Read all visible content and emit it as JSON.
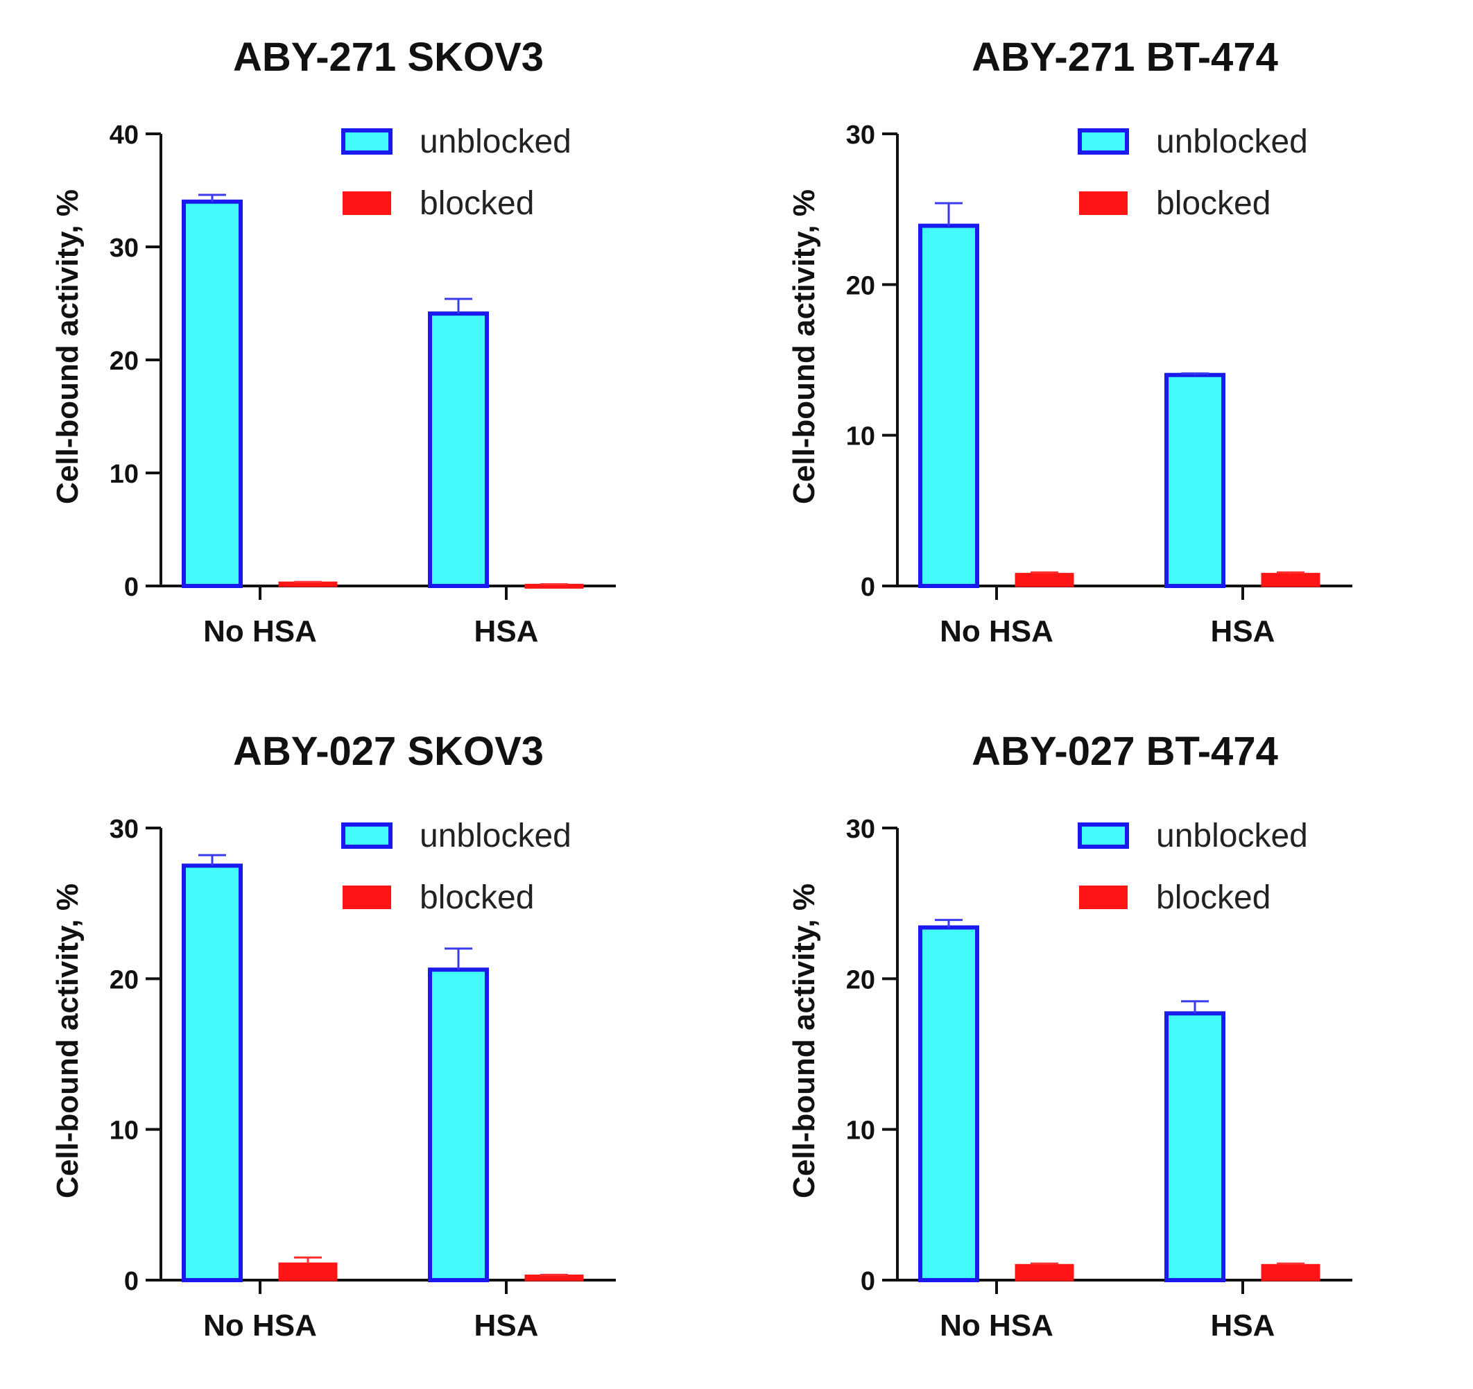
{
  "chart_data": [
    {
      "type": "bar",
      "title": "ABY-271 SKOV3",
      "ylabel": "Cell-bound activity, %",
      "xlabel": "",
      "ylim": [
        0,
        40
      ],
      "yticks": [
        0,
        10,
        20,
        30,
        40
      ],
      "categories": [
        "No HSA",
        "HSA"
      ],
      "legend": [
        "unblocked",
        "blocked"
      ],
      "legend_position": "top-right",
      "series": [
        {
          "name": "unblocked",
          "values": [
            34.0,
            24.1
          ],
          "errors": [
            0.6,
            1.3
          ]
        },
        {
          "name": "blocked",
          "values": [
            0.3,
            0.1
          ],
          "errors": [
            0.05,
            0.05
          ]
        }
      ]
    },
    {
      "type": "bar",
      "title": "ABY-271 BT-474",
      "ylabel": "Cell-bound activity, %",
      "xlabel": "",
      "ylim": [
        0,
        30
      ],
      "yticks": [
        0,
        10,
        20,
        30
      ],
      "categories": [
        "No HSA",
        "HSA"
      ],
      "legend": [
        "unblocked",
        "blocked"
      ],
      "legend_position": "top-right",
      "series": [
        {
          "name": "unblocked",
          "values": [
            23.9,
            14.0
          ],
          "errors": [
            1.5,
            0.1
          ]
        },
        {
          "name": "blocked",
          "values": [
            0.8,
            0.8
          ],
          "errors": [
            0.1,
            0.1
          ]
        }
      ]
    },
    {
      "type": "bar",
      "title": "ABY-027 SKOV3",
      "ylabel": "Cell-bound activity, %",
      "xlabel": "",
      "ylim": [
        0,
        30
      ],
      "yticks": [
        0,
        10,
        20,
        30
      ],
      "categories": [
        "No HSA",
        "HSA"
      ],
      "legend": [
        "unblocked",
        "blocked"
      ],
      "legend_position": "top-right",
      "series": [
        {
          "name": "unblocked",
          "values": [
            27.5,
            20.6
          ],
          "errors": [
            0.7,
            1.4
          ]
        },
        {
          "name": "blocked",
          "values": [
            1.1,
            0.3
          ],
          "errors": [
            0.4,
            0.05
          ]
        }
      ]
    },
    {
      "type": "bar",
      "title": "ABY-027 BT-474",
      "ylabel": "Cell-bound activity, %",
      "xlabel": "",
      "ylim": [
        0,
        30
      ],
      "yticks": [
        0,
        10,
        20,
        30
      ],
      "categories": [
        "No HSA",
        "HSA"
      ],
      "legend": [
        "unblocked",
        "blocked"
      ],
      "legend_position": "top-right",
      "series": [
        {
          "name": "unblocked",
          "values": [
            23.4,
            17.7
          ],
          "errors": [
            0.5,
            0.8
          ]
        },
        {
          "name": "blocked",
          "values": [
            1.0,
            1.0
          ],
          "errors": [
            0.1,
            0.1
          ]
        }
      ]
    }
  ],
  "colors": {
    "unblocked_fill": "#44fbfb",
    "unblocked_stroke": "#1a1aee",
    "blocked_fill": "#ff1515",
    "blocked_stroke": "#ff1515",
    "error_unblocked": "#3a3aee",
    "error_blocked": "#ff3030",
    "axis": "#111111"
  }
}
